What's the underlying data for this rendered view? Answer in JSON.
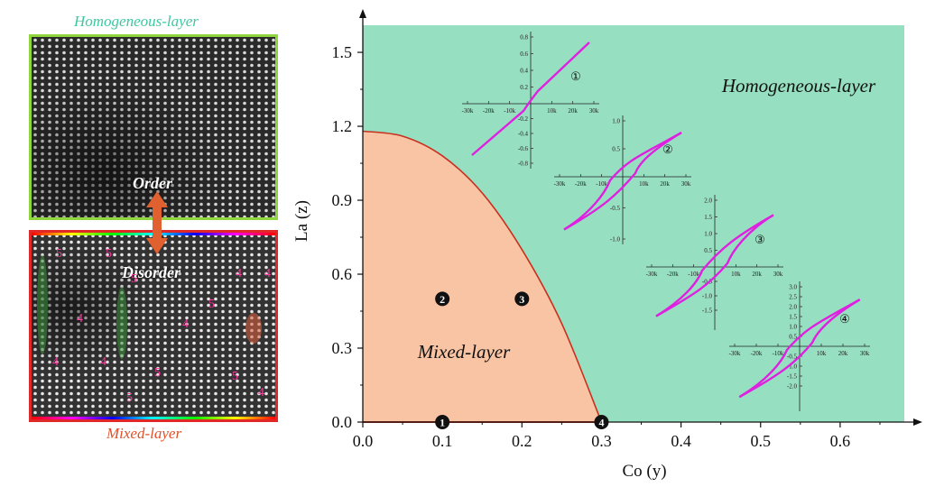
{
  "left_panel": {
    "top_label": "Homogeneous-layer",
    "bottom_label": "Mixed-layer",
    "order_text": "Order",
    "disorder_text": "Disorder",
    "domain_numbers": [
      "5",
      "5",
      "5",
      "4",
      "4",
      "4",
      "4",
      "4",
      "5",
      "5",
      "4",
      "5",
      "5",
      "4"
    ],
    "colors": {
      "top_border": "#8ed63c",
      "bottom_border": "#e02828",
      "arrow": "#e06030",
      "numbers": "#ff3aa0"
    }
  },
  "chart_data": {
    "type": "area",
    "xlabel": "Co (y)",
    "ylabel": "La (z)",
    "xlim": [
      0.0,
      0.68
    ],
    "ylim": [
      0.0,
      1.65
    ],
    "x_ticks": [
      "0.0",
      "0.1",
      "0.2",
      "0.3",
      "0.4",
      "0.5",
      "0.6"
    ],
    "y_ticks": [
      "0.0",
      "0.3",
      "0.6",
      "0.9",
      "1.2",
      "1.5"
    ],
    "regions": [
      {
        "name": "Homogeneous-layer",
        "color": "#96dfc1"
      },
      {
        "name": "Mixed-layer",
        "color": "#f8c4a4"
      }
    ],
    "boundary": {
      "color": "#c83020",
      "x": [
        0.0,
        0.05,
        0.1,
        0.15,
        0.2,
        0.25,
        0.3
      ],
      "y": [
        1.18,
        1.16,
        1.08,
        0.93,
        0.7,
        0.4,
        0.0
      ]
    },
    "samples": [
      {
        "label": "1",
        "x": 0.1,
        "y": 0.0
      },
      {
        "label": "2",
        "x": 0.1,
        "y": 0.5
      },
      {
        "label": "3",
        "x": 0.2,
        "y": 0.5
      },
      {
        "label": "4",
        "x": 0.3,
        "y": 0.0
      }
    ],
    "insets": [
      {
        "id": "①",
        "xticks": [
          "-30k",
          "-20k",
          "-10k",
          "10k",
          "20k",
          "30k"
        ],
        "yticks": [
          "0.8",
          "0.6",
          "0.4",
          "0.2",
          "-0.2",
          "-0.4",
          "-0.6",
          "-0.8"
        ]
      },
      {
        "id": "②",
        "xticks": [
          "-30k",
          "-20k",
          "-10k",
          "10k",
          "20k",
          "30k"
        ],
        "yticks": [
          "1.0",
          "0.5",
          "-0.5",
          "-1.0"
        ]
      },
      {
        "id": "③",
        "xticks": [
          "-30k",
          "-20k",
          "-10k",
          "10k",
          "20k",
          "30k"
        ],
        "yticks": [
          "2.0",
          "1.5",
          "1.0",
          "0.5",
          "-0.5",
          "-1.0",
          "-1.5"
        ]
      },
      {
        "id": "④",
        "xticks": [
          "-30k",
          "-20k",
          "-10k",
          "10k",
          "20k",
          "30k"
        ],
        "yticks": [
          "3.0",
          "2.5",
          "2.0",
          "1.5",
          "1.0",
          "0.5",
          "-0.5",
          "-1.0",
          "-1.5",
          "-2.0"
        ]
      }
    ],
    "inset_curve_color": "#e020e0"
  }
}
